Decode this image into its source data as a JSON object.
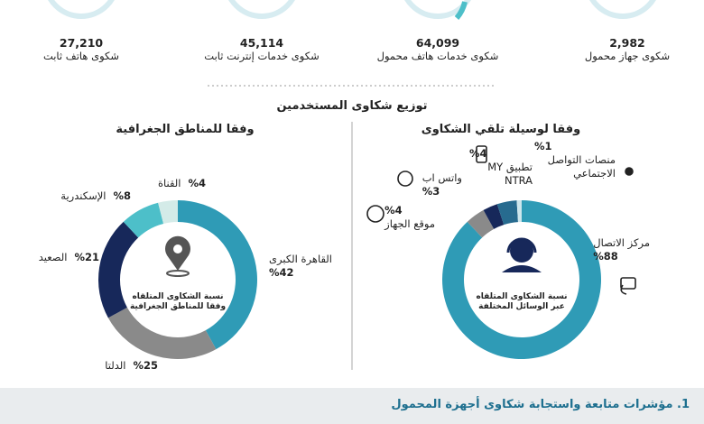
{
  "stats": [
    {
      "number": "2,982",
      "label": "شكوى جهاز محمول"
    },
    {
      "number": "64,099",
      "label": "شكوى خدمات هاتف محمول"
    },
    {
      "number": "45,114",
      "label": "شكوى خدمات إنترنت ثابت"
    },
    {
      "number": "27,210",
      "label": "شكوى هاتف ثابت"
    }
  ],
  "section_title": "توزيع شكاوى المستخدمين",
  "chart_data": [
    {
      "type": "donut",
      "title": "وفقا لوسيلة تلقي الشكاوى",
      "center_text": "نسبة الشكاوى المتلقاه عبر الوسائل المختلفة",
      "categories": [
        "مركز الاتصال",
        "موقع الجهاز",
        "واتس اب",
        "تطبيق MY NTRA",
        "منصات التواصل الاجتماعي"
      ],
      "values": [
        88,
        4,
        3,
        4,
        1
      ],
      "value_labels": [
        "%88",
        "%4",
        "%3",
        "%4",
        "%1"
      ],
      "colors": [
        "#2f9bb6",
        "#8a8a8a",
        "#17285a",
        "#276b8f",
        "#cde6ec"
      ]
    },
    {
      "type": "donut",
      "title": "وفقا للمناطق الجغرافية",
      "center_text": "نسبة الشكاوى المتلقاه وفقا للمناطق الجغرافية",
      "categories": [
        "القاهرة الكبرى",
        "الدلتا",
        "الصعيد",
        "الإسكندرية",
        "القناة"
      ],
      "values": [
        42,
        25,
        21,
        8,
        4
      ],
      "value_labels": [
        "%42",
        "%25",
        "%21",
        "%8",
        "%4"
      ],
      "colors": [
        "#2f9bb6",
        "#8a8a8a",
        "#17285a",
        "#4dbfc9",
        "#d4ebe8"
      ]
    }
  ],
  "footer": "1. مؤشرات متابعة واستجابة شكاوى أجهزة المحمول"
}
